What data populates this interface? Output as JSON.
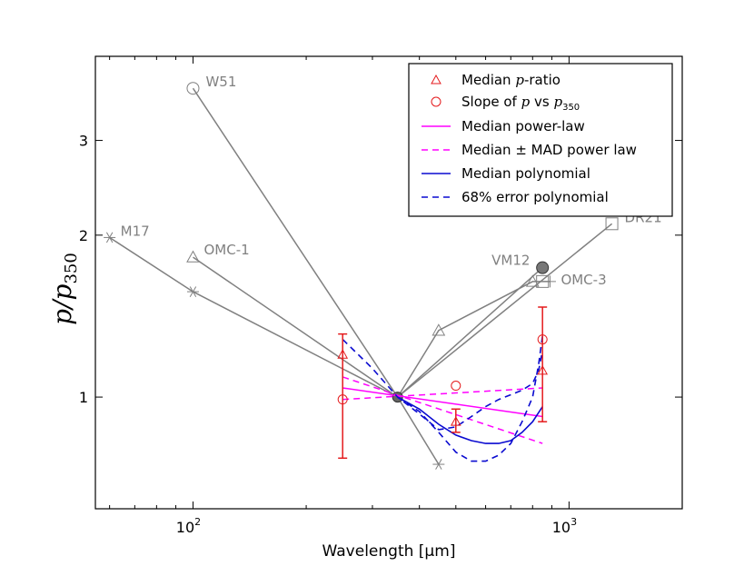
{
  "chart_data": {
    "type": "line",
    "xlabel": "Wavelength [",
    "xlabel_unit": "μm",
    "xlabel_close": "]",
    "ylabel_main": "p/p",
    "ylabel_sub": "350",
    "xscale": "log",
    "yscale": "log",
    "xlim": [
      55,
      2000
    ],
    "ylim": [
      0.62,
      4.3
    ],
    "x_ticks": [
      {
        "value": 100,
        "base": "10",
        "exp": "2"
      },
      {
        "value": 1000,
        "base": "10",
        "exp": "3"
      }
    ],
    "y_ticks": [
      {
        "value": 1,
        "label": "1"
      },
      {
        "value": 2,
        "label": "2"
      },
      {
        "value": 3,
        "label": "3"
      }
    ],
    "sources": [
      {
        "name": "W51",
        "marker": "circle",
        "points": [
          [
            100,
            3.75
          ],
          [
            350,
            1.0
          ]
        ]
      },
      {
        "name": "M17",
        "marker": "star",
        "points": [
          [
            60,
            1.98
          ],
          [
            100,
            1.57
          ],
          [
            350,
            1.0
          ],
          [
            450,
            0.75
          ]
        ]
      },
      {
        "name": "OMC-1",
        "marker": "triangle",
        "points": [
          [
            100,
            1.82
          ],
          [
            350,
            1.0
          ]
        ]
      },
      {
        "name": "DR21",
        "marker": "square",
        "points": [
          [
            350,
            1.0
          ],
          [
            1300,
            2.1
          ]
        ]
      },
      {
        "name": "VM12",
        "marker": "filled-circle",
        "points": [
          [
            350,
            1.0
          ],
          [
            850,
            1.74
          ]
        ]
      },
      {
        "name": "OMC-3",
        "marker": "triangle-square-plus",
        "points": [
          [
            350,
            1.0
          ],
          [
            450,
            1.33
          ],
          [
            800,
            1.64
          ],
          [
            850,
            1.64
          ],
          [
            890,
            1.64
          ]
        ]
      }
    ],
    "median_p_ratio": [
      {
        "x": 250,
        "y": 1.2,
        "lo": 0.77,
        "hi": 1.31
      },
      {
        "x": 500,
        "y": 0.9,
        "lo": 0.86,
        "hi": 0.95
      },
      {
        "x": 850,
        "y": 1.12,
        "lo": 0.9,
        "hi": 1.47
      }
    ],
    "slope_vs_p350": [
      {
        "x": 250,
        "y": 0.99
      },
      {
        "x": 500,
        "y": 1.05
      },
      {
        "x": 850,
        "y": 1.28
      }
    ],
    "median_power_law": {
      "x": [
        250,
        850
      ],
      "y": [
        1.04,
        0.92
      ]
    },
    "mad_power_law_upper": {
      "x": [
        250,
        850
      ],
      "y": [
        0.99,
        1.04
      ]
    },
    "mad_power_law_lower": {
      "x": [
        250,
        850
      ],
      "y": [
        1.09,
        0.82
      ]
    },
    "median_polynomial": {
      "x": [
        350,
        400,
        450,
        500,
        550,
        600,
        650,
        700,
        750,
        800,
        850
      ],
      "y": [
        1.0,
        0.95,
        0.89,
        0.85,
        0.83,
        0.82,
        0.82,
        0.83,
        0.86,
        0.9,
        0.96
      ]
    },
    "error_polynomial_upper": {
      "x": [
        250,
        300,
        350,
        400,
        450,
        500,
        550,
        600,
        650,
        700,
        750,
        800,
        830,
        850
      ],
      "y": [
        1.28,
        1.13,
        1.0,
        0.93,
        0.87,
        0.88,
        0.92,
        0.96,
        0.99,
        1.01,
        1.03,
        1.06,
        1.12,
        1.22
      ]
    },
    "error_polynomial_lower": {
      "x": [
        350,
        400,
        450,
        500,
        550,
        600,
        650,
        700,
        750,
        800,
        830,
        850
      ],
      "y": [
        1.0,
        0.94,
        0.86,
        0.79,
        0.76,
        0.76,
        0.78,
        0.82,
        0.9,
        1.0,
        1.15,
        1.3
      ]
    }
  },
  "legend": {
    "items": [
      {
        "key": "median_p_ratio",
        "prefix": "Median ",
        "math": "p",
        "suffix": "-ratio"
      },
      {
        "key": "slope",
        "prefix": "Slope of ",
        "math": "p",
        "mid": " vs ",
        "math2": "p",
        "sub": "350"
      },
      {
        "key": "median_power_law",
        "prefix": "Median power-law"
      },
      {
        "key": "mad_power_law",
        "prefix": "Median ± MAD power law"
      },
      {
        "key": "median_polynomial",
        "prefix": "Median polynomial"
      },
      {
        "key": "error_polynomial",
        "prefix": "68% error polynomial"
      }
    ],
    "placement": "top-right"
  },
  "colors": {
    "sources": "#808080",
    "red": "#e41a1c",
    "magenta": "#ff00ff",
    "blue": "#0a0ad0"
  }
}
